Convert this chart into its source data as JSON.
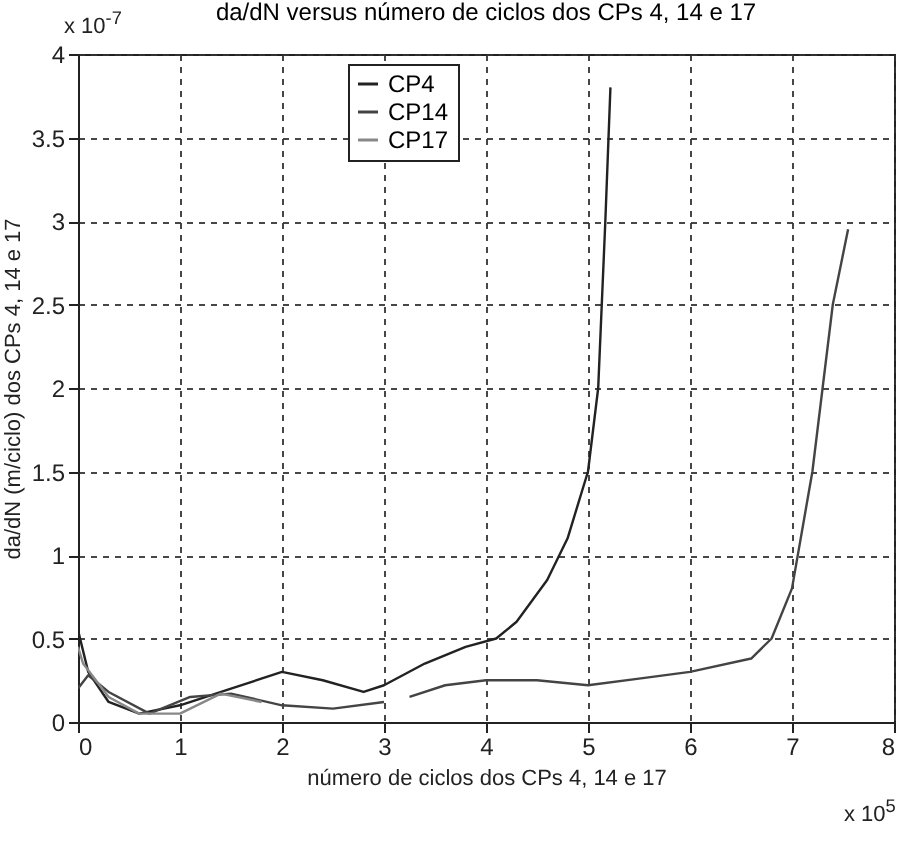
{
  "chart_data": {
    "type": "line",
    "title": "da/dN versus número de ciclos dos CPs 4, 14 e 17",
    "xlabel": "número de ciclos dos CPs 4, 14 e 17",
    "ylabel": "da/dN (m/ciclo) dos CPs 4, 14 e 17",
    "annotations": [
      "x 10$^{-7}$",
      "x 10$^{5}$"
    ],
    "xlim": [
      0,
      8
    ],
    "xticks": [
      0,
      1,
      2,
      3,
      4,
      5,
      6,
      7,
      8
    ],
    "ylim": [
      0,
      4
    ],
    "yticks": [
      0,
      0.5,
      1,
      1.5,
      2,
      2.5,
      3,
      3.5,
      4
    ],
    "grid": true,
    "legend": "top left",
    "line_style": "solid",
    "series": [
      {
        "name": "CP4",
        "color": "#222222",
        "x": [
          0,
          0.1,
          0.3,
          0.6,
          1,
          1.5,
          2,
          2.4,
          2.8,
          3,
          3.4,
          3.8,
          4.1,
          4.3,
          4.6,
          4.8,
          5.0,
          5.1,
          5.17,
          5.22
        ],
        "values": [
          0.55,
          0.3,
          0.12,
          0.05,
          0.1,
          0.2,
          0.3,
          0.25,
          0.18,
          0.22,
          0.35,
          0.45,
          0.5,
          0.6,
          0.85,
          1.1,
          1.5,
          2.0,
          3.0,
          3.8
        ]
      },
      {
        "name": "CP14",
        "color": "#444444",
        "x": [
          0,
          0.1,
          0.3,
          0.7,
          1.1,
          1.5,
          2,
          2.5,
          3,
          3.1,
          3.25,
          3.6,
          4,
          4.5,
          5,
          5.5,
          6,
          6.6,
          6.8,
          7,
          7.2,
          7.4,
          7.55
        ],
        "values": [
          0.2,
          0.28,
          0.18,
          0.05,
          0.15,
          0.17,
          0.1,
          0.08,
          0.12,
          null,
          0.15,
          0.22,
          0.25,
          0.25,
          0.22,
          0.26,
          0.3,
          0.38,
          0.5,
          0.8,
          1.5,
          2.5,
          2.95
        ]
      },
      {
        "name": "CP17",
        "color": "#888888",
        "x": [
          0,
          0.05,
          0.3,
          0.6,
          1,
          1.4,
          1.8
        ],
        "values": [
          0.45,
          0.35,
          0.15,
          0.05,
          0.05,
          0.17,
          0.12
        ]
      }
    ]
  }
}
